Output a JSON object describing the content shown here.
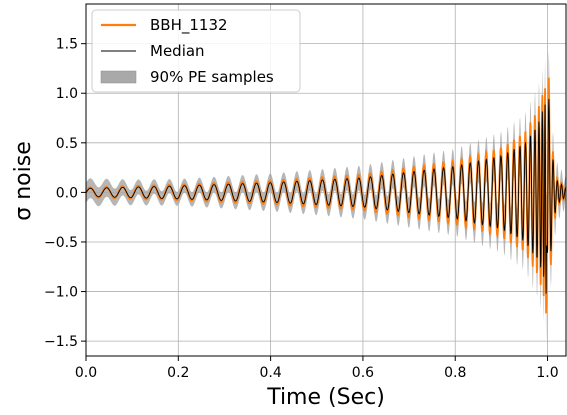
{
  "chart_data": {
    "type": "line",
    "xlabel": "Time (Sec)",
    "ylabel": "σ noise",
    "xlim": [
      0.0,
      1.04
    ],
    "ylim": [
      -1.65,
      1.9
    ],
    "xticks": [
      0.0,
      0.2,
      0.4,
      0.6,
      0.8,
      1.0
    ],
    "xtick_labels": [
      "0.0",
      "0.2",
      "0.4",
      "0.6",
      "0.8",
      "1.0"
    ],
    "yticks": [
      -1.5,
      -1.0,
      -0.5,
      0.0,
      0.5,
      1.0,
      1.5
    ],
    "ytick_labels": [
      "−1.5",
      "−1.0",
      "−0.5",
      "0.0",
      "0.5",
      "1.0",
      "1.5"
    ],
    "grid": true,
    "legend_position": "top-left",
    "series": [
      {
        "name": "BBH_1132",
        "kind": "line",
        "color": "#ff7f0e"
      },
      {
        "name": "Median",
        "kind": "line",
        "color": "#000000"
      },
      {
        "name": "90% PE samples",
        "kind": "band",
        "color": "#a9a9a9"
      }
    ],
    "signal": {
      "t_merger": 1.0,
      "t_end": 1.04,
      "n_cycles": 45,
      "amplitude_points": [
        [
          0.0,
          0.05
        ],
        [
          0.2,
          0.08
        ],
        [
          0.4,
          0.12
        ],
        [
          0.6,
          0.18
        ],
        [
          0.8,
          0.32
        ],
        [
          0.9,
          0.45
        ],
        [
          0.95,
          0.6
        ],
        [
          0.98,
          0.85
        ],
        [
          0.995,
          1.1
        ],
        [
          1.0,
          1.5
        ],
        [
          1.005,
          0.9
        ],
        [
          1.012,
          0.4
        ],
        [
          1.02,
          0.15
        ],
        [
          1.04,
          0.05
        ]
      ],
      "band_halfwidth_points": [
        [
          0.0,
          0.09
        ],
        [
          0.1,
          0.06
        ],
        [
          0.2,
          0.05
        ],
        [
          0.5,
          0.07
        ],
        [
          0.8,
          0.1
        ],
        [
          0.95,
          0.15
        ],
        [
          1.0,
          0.2
        ],
        [
          1.04,
          0.1
        ]
      ]
    }
  }
}
